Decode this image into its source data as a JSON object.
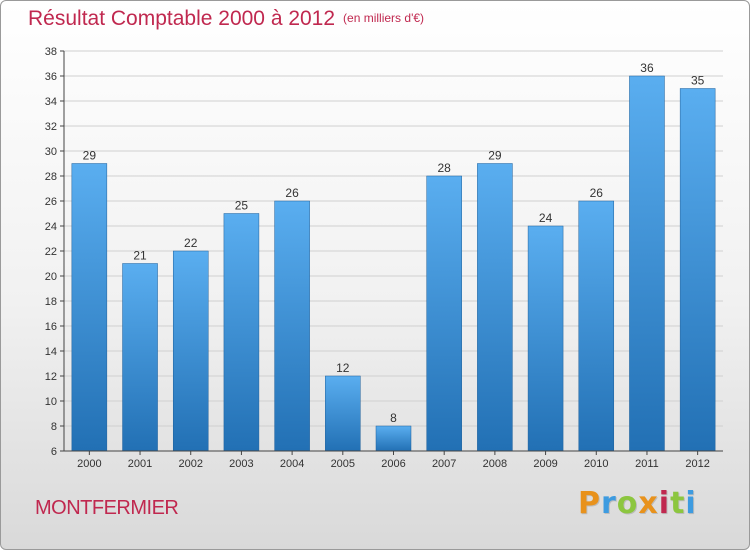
{
  "header": {
    "title": "Résultat Comptable 2000 à 2012",
    "subtitle": "(en milliers d'€)"
  },
  "footer": {
    "location": "MONTFERMIER",
    "brand": "Proxiti",
    "brand_letter_colors": [
      "#e8921c",
      "#3d9be0",
      "#8cc63f",
      "#e8921c",
      "#c0284f",
      "#8cc63f",
      "#3d9be0"
    ]
  },
  "colors": {
    "bar_light": "#5aaef0",
    "bar_dark": "#2270b4",
    "text": "#c0284f",
    "axis": "#444444",
    "grid": "#d0d0d0"
  },
  "chart_data": {
    "type": "bar",
    "title": "Résultat Comptable 2000 à 2012",
    "subtitle": "(en milliers d'€)",
    "categories": [
      "2000",
      "2001",
      "2002",
      "2003",
      "2004",
      "2005",
      "2006",
      "2007",
      "2008",
      "2009",
      "2010",
      "2011",
      "2012"
    ],
    "values": [
      29,
      21,
      22,
      25,
      26,
      12,
      8,
      28,
      29,
      24,
      26,
      36,
      35
    ],
    "ylim": [
      6,
      38
    ],
    "yticks": [
      6,
      8,
      10,
      12,
      14,
      16,
      18,
      20,
      22,
      24,
      26,
      28,
      30,
      32,
      34,
      36,
      38
    ],
    "grid": true,
    "data_labels": true
  }
}
